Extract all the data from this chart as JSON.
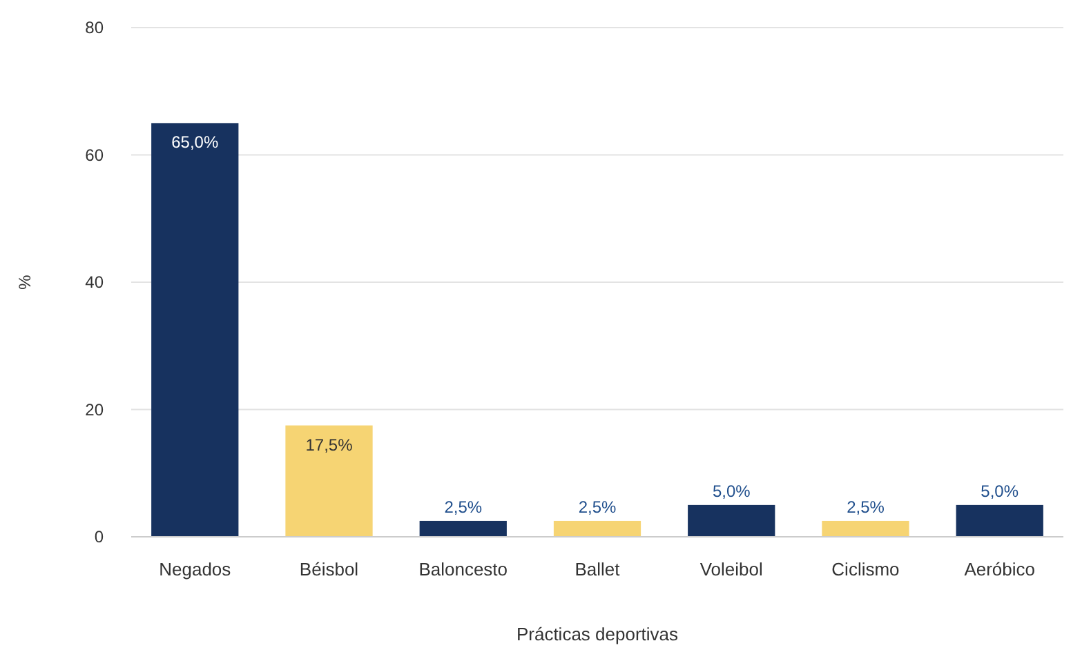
{
  "chart_data": {
    "type": "bar",
    "xlabel": "Prácticas deportivas",
    "ylabel": "%",
    "categories": [
      "Negados",
      "Béisbol",
      "Baloncesto",
      "Ballet",
      "Voleibol",
      "Ciclismo",
      "Aeróbico"
    ],
    "values": [
      65,
      17.5,
      2.5,
      2.5,
      5,
      2.5,
      5
    ],
    "colors": [
      "#17325f",
      "#f6d473",
      "#17325f",
      "#f6d473",
      "#17325f",
      "#f6d473",
      "#17325f"
    ],
    "value_labels": [
      "65,0%",
      "17,5%",
      "2,5%",
      "2,5%",
      "5,0%",
      "2,5%",
      "5,0%"
    ],
    "ylim": [
      0,
      80
    ],
    "yticks": [
      0,
      20,
      40,
      60,
      80
    ],
    "grid": "y"
  }
}
